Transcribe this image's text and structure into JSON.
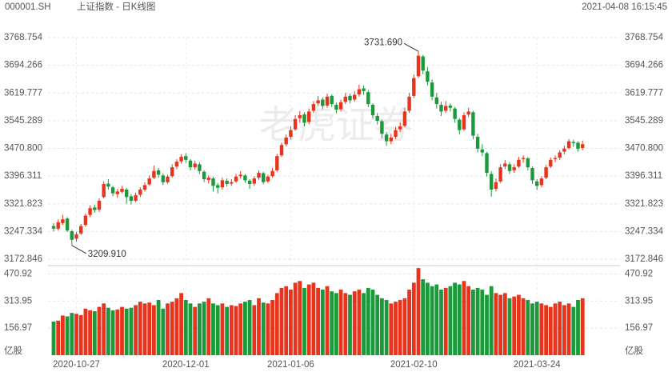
{
  "chart_data": {
    "type": "candlestick",
    "code": "000001.SH",
    "title": "上证指数 - 日K线图",
    "timestamp": "2021-04-08 16:15:45",
    "watermark": "老虎证券",
    "up_color": "#e8341c",
    "down_color": "#1a9a3a",
    "categories": [
      null,
      null,
      null,
      null,
      null,
      "2020-10-27",
      null,
      null,
      null,
      null,
      null,
      null,
      null,
      null,
      null,
      null,
      null,
      null,
      null,
      null,
      null,
      null,
      null,
      null,
      null,
      null,
      null,
      null,
      null,
      "2020-12-01",
      null,
      null,
      null,
      null,
      null,
      null,
      null,
      null,
      null,
      null,
      null,
      null,
      null,
      null,
      null,
      null,
      null,
      null,
      null,
      null,
      null,
      null,
      "2021-01-06",
      null,
      null,
      null,
      null,
      null,
      null,
      null,
      null,
      null,
      null,
      null,
      null,
      null,
      null,
      null,
      null,
      null,
      null,
      null,
      null,
      null,
      null,
      null,
      null,
      null,
      null,
      "2021-02-10",
      null,
      null,
      null,
      null,
      null,
      null,
      null,
      null,
      null,
      null,
      null,
      null,
      null,
      null,
      null,
      null,
      null,
      null,
      null,
      null,
      null,
      null,
      null,
      null,
      null,
      null,
      "2021-03-24",
      null,
      null,
      null,
      null,
      null,
      null,
      null,
      null,
      null,
      null
    ],
    "open": [
      3262,
      3255,
      3270,
      3282,
      3248,
      3228,
      3242,
      3265,
      3292,
      3312,
      3306,
      3340,
      3376,
      3366,
      3348,
      3354,
      3360,
      3342,
      3330,
      3346,
      3360,
      3374,
      3392,
      3412,
      3398,
      3380,
      3396,
      3422,
      3436,
      3450,
      3438,
      3420,
      3428,
      3408,
      3386,
      3390,
      3372,
      3366,
      3384,
      3376,
      3382,
      3396,
      3398,
      3384,
      3376,
      3392,
      3404,
      3382,
      3396,
      3412,
      3452,
      3482,
      3502,
      3522,
      3552,
      3562,
      3542,
      3572,
      3592,
      3602,
      3586,
      3612,
      3588,
      3576,
      3596,
      3612,
      3602,
      3616,
      3632,
      3622,
      3588,
      3558,
      3544,
      3508,
      3490,
      3502,
      3522,
      3532,
      3572,
      3612,
      3665,
      3718,
      3678,
      3648,
      3608,
      3588,
      3572,
      3586,
      3578,
      3548,
      3522,
      3562,
      3568,
      3502,
      3468,
      3458,
      3402,
      3362,
      3382,
      3422,
      3428,
      3412,
      3422,
      3442,
      3444,
      3418,
      3382,
      3372,
      3392,
      3422,
      3442,
      3446,
      3462,
      3472,
      3488,
      3486,
      3472
    ],
    "high": [
      3270,
      3280,
      3292,
      3286,
      3252,
      3246,
      3268,
      3296,
      3318,
      3320,
      3336,
      3382,
      3388,
      3370,
      3362,
      3370,
      3364,
      3348,
      3352,
      3366,
      3380,
      3398,
      3425,
      3418,
      3404,
      3400,
      3428,
      3442,
      3455,
      3458,
      3442,
      3438,
      3434,
      3412,
      3398,
      3394,
      3378,
      3392,
      3390,
      3388,
      3402,
      3410,
      3402,
      3388,
      3396,
      3412,
      3408,
      3400,
      3418,
      3456,
      3486,
      3508,
      3530,
      3560,
      3572,
      3568,
      3578,
      3598,
      3612,
      3608,
      3618,
      3616,
      3594,
      3602,
      3620,
      3618,
      3625,
      3642,
      3640,
      3628,
      3592,
      3566,
      3548,
      3515,
      3510,
      3528,
      3540,
      3580,
      3620,
      3670,
      3731.69,
      3722,
      3690,
      3656,
      3620,
      3596,
      3598,
      3592,
      3582,
      3552,
      3568,
      3580,
      3572,
      3510,
      3482,
      3462,
      3410,
      3390,
      3428,
      3440,
      3434,
      3428,
      3448,
      3452,
      3448,
      3422,
      3388,
      3396,
      3426,
      3446,
      3452,
      3466,
      3478,
      3496,
      3494,
      3490,
      3492
    ],
    "low": [
      3248,
      3250,
      3265,
      3246,
      3209.91,
      3220,
      3238,
      3260,
      3286,
      3298,
      3300,
      3336,
      3360,
      3342,
      3338,
      3350,
      3322,
      3320,
      3326,
      3340,
      3355,
      3370,
      3388,
      3392,
      3372,
      3376,
      3392,
      3415,
      3430,
      3432,
      3412,
      3414,
      3402,
      3380,
      3376,
      3355,
      3350,
      3360,
      3368,
      3370,
      3378,
      3390,
      3378,
      3362,
      3370,
      3386,
      3374,
      3378,
      3392,
      3408,
      3448,
      3476,
      3495,
      3518,
      3540,
      3530,
      3536,
      3566,
      3585,
      3576,
      3580,
      3582,
      3565,
      3570,
      3590,
      3592,
      3596,
      3610,
      3615,
      3582,
      3550,
      3535,
      3498,
      3478,
      3482,
      3496,
      3515,
      3528,
      3566,
      3606,
      3660,
      3670,
      3640,
      3600,
      3578,
      3558,
      3566,
      3570,
      3540,
      3508,
      3518,
      3555,
      3495,
      3460,
      3450,
      3395,
      3341,
      3355,
      3378,
      3415,
      3402,
      3405,
      3418,
      3432,
      3412,
      3375,
      3359,
      3366,
      3388,
      3418,
      3434,
      3440,
      3455,
      3468,
      3475,
      3462,
      3466
    ],
    "close": [
      3255,
      3272,
      3280,
      3250,
      3225,
      3240,
      3262,
      3290,
      3310,
      3305,
      3330,
      3375,
      3368,
      3350,
      3355,
      3362,
      3340,
      3330,
      3345,
      3360,
      3372,
      3390,
      3410,
      3400,
      3380,
      3395,
      3420,
      3435,
      3448,
      3440,
      3420,
      3430,
      3410,
      3388,
      3392,
      3370,
      3365,
      3385,
      3375,
      3380,
      3395,
      3400,
      3385,
      3375,
      3390,
      3405,
      3380,
      3395,
      3410,
      3450,
      3480,
      3500,
      3520,
      3550,
      3560,
      3540,
      3570,
      3590,
      3600,
      3585,
      3610,
      3590,
      3575,
      3595,
      3610,
      3600,
      3615,
      3630,
      3625,
      3590,
      3560,
      3545,
      3510,
      3490,
      3500,
      3520,
      3530,
      3570,
      3610,
      3660,
      3720,
      3680,
      3650,
      3610,
      3590,
      3570,
      3585,
      3580,
      3550,
      3520,
      3560,
      3570,
      3505,
      3470,
      3460,
      3405,
      3360,
      3380,
      3420,
      3430,
      3410,
      3420,
      3440,
      3445,
      3420,
      3385,
      3370,
      3390,
      3420,
      3440,
      3445,
      3460,
      3470,
      3490,
      3485,
      3470,
      3482
    ],
    "ylim": [
      3172.846,
      3768.754
    ],
    "yticks": [
      3172.846,
      3247.334,
      3321.823,
      3396.311,
      {
        "value": 3470.8,
        "label": "3470.800"
      },
      3545.289,
      3619.777,
      3694.266,
      3768.754
    ],
    "annotations": {
      "max_label": "3731.690",
      "min_label": "3209.910"
    },
    "volume": {
      "unit": "亿股",
      "ylim": [
        0,
        510
      ],
      "yticks": [
        156.97,
        313.95,
        470.92
      ],
      "values": [
        195,
        200,
        230,
        225,
        245,
        240,
        232,
        270,
        260,
        255,
        280,
        300,
        275,
        260,
        265,
        280,
        270,
        275,
        290,
        310,
        300,
        305,
        290,
        320,
        270,
        300,
        310,
        330,
        360,
        320,
        300,
        280,
        300,
        310,
        330,
        300,
        290,
        300,
        280,
        290,
        285,
        300,
        310,
        320,
        290,
        330,
        305,
        300,
        320,
        360,
        390,
        400,
        380,
        420,
        430,
        390,
        410,
        420,
        390,
        380,
        400,
        370,
        360,
        380,
        360,
        350,
        370,
        380,
        360,
        390,
        380,
        350,
        330,
        320,
        300,
        310,
        320,
        330,
        380,
        420,
        505,
        440,
        420,
        400,
        410,
        380,
        390,
        400,
        420,
        410,
        430,
        400,
        380,
        390,
        380,
        350,
        400,
        360,
        350,
        360,
        330,
        340,
        350,
        330,
        320,
        300,
        310,
        300,
        290,
        280,
        300,
        310,
        290,
        300,
        280,
        320,
        330
      ]
    }
  }
}
